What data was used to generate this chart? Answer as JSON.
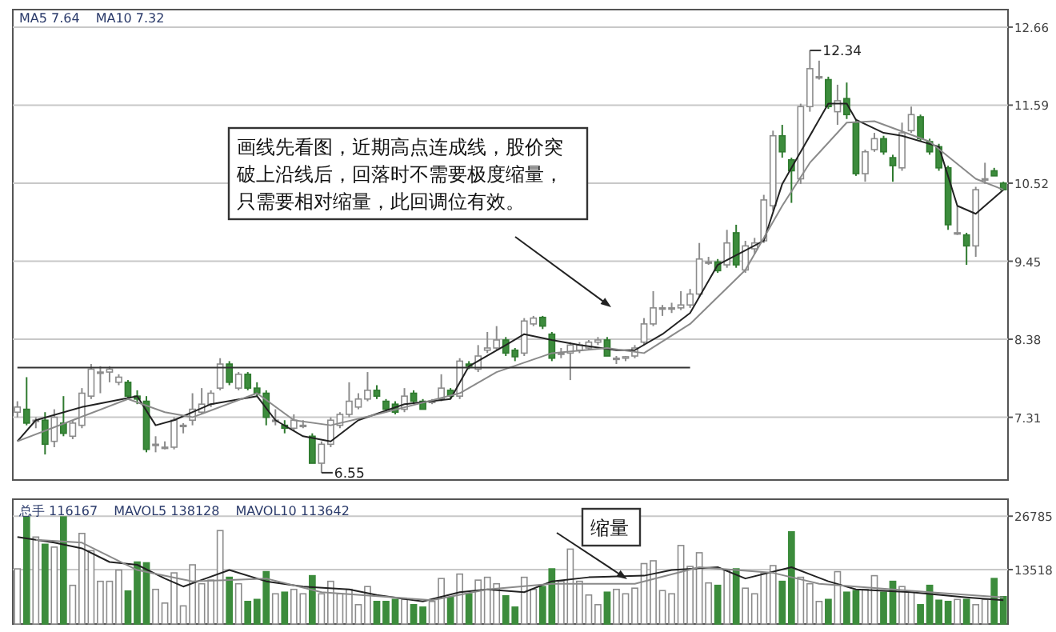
{
  "chart_data": [
    {
      "type": "candlestick",
      "tick_labels": "y",
      "grid": "y",
      "ylim": [
        6.45,
        12.9
      ],
      "yticks": [
        7.31,
        8.38,
        9.45,
        10.52,
        11.59,
        12.66
      ],
      "categories": [
        null,
        null,
        null,
        null,
        null,
        null,
        null,
        null,
        null,
        null,
        null,
        null,
        null,
        null,
        null,
        null,
        null,
        null,
        null,
        null,
        null,
        null,
        null,
        null,
        null,
        null,
        null,
        null,
        null,
        null,
        null,
        null,
        null,
        null,
        null,
        null,
        null,
        null,
        null,
        null,
        null,
        null,
        null,
        null,
        null,
        null,
        null,
        null,
        null,
        null,
        null,
        null,
        null,
        null,
        null,
        null,
        null,
        null,
        null,
        null,
        null,
        null,
        null,
        null,
        null,
        null,
        null,
        null,
        null,
        null,
        null,
        null,
        null,
        null,
        null,
        null,
        null,
        null,
        null,
        null,
        null,
        null,
        null,
        null,
        null,
        null,
        null,
        null,
        null,
        null,
        null,
        null,
        null,
        null,
        null,
        null,
        null,
        null,
        null,
        null,
        null,
        null,
        null,
        null,
        null,
        null,
        null,
        null
      ],
      "ohlc": [
        [
          7.38,
          7.53,
          7.31,
          7.45
        ],
        [
          7.42,
          7.86,
          7.2,
          7.23
        ],
        [
          7.27,
          7.31,
          7.16,
          7.27
        ],
        [
          7.27,
          7.38,
          6.8,
          6.94
        ],
        [
          6.98,
          7.42,
          6.9,
          7.31
        ],
        [
          7.23,
          7.6,
          7.05,
          7.09
        ],
        [
          7.05,
          7.27,
          7.01,
          7.23
        ],
        [
          7.2,
          7.71,
          7.16,
          7.64
        ],
        [
          7.6,
          8.04,
          7.56,
          7.97
        ],
        [
          7.93,
          8.01,
          7.64,
          7.93
        ],
        [
          7.93,
          8.01,
          7.79,
          7.97
        ],
        [
          7.79,
          7.9,
          7.75,
          7.86
        ],
        [
          7.79,
          7.82,
          7.56,
          7.6
        ],
        [
          7.6,
          7.68,
          7.49,
          7.56
        ],
        [
          7.53,
          7.6,
          6.83,
          6.87
        ],
        [
          6.94,
          7.05,
          6.83,
          6.94
        ],
        [
          6.9,
          6.98,
          6.87,
          6.9
        ],
        [
          6.9,
          7.31,
          6.87,
          7.27
        ],
        [
          7.2,
          7.23,
          7.09,
          7.2
        ],
        [
          7.27,
          7.64,
          7.2,
          7.42
        ],
        [
          7.38,
          7.71,
          7.35,
          7.49
        ],
        [
          7.49,
          7.68,
          7.45,
          7.64
        ],
        [
          7.71,
          8.12,
          7.68,
          8.04
        ],
        [
          8.04,
          8.08,
          7.75,
          7.79
        ],
        [
          7.71,
          7.93,
          7.68,
          7.9
        ],
        [
          7.9,
          7.93,
          7.68,
          7.71
        ],
        [
          7.71,
          7.79,
          7.6,
          7.64
        ],
        [
          7.64,
          7.68,
          7.2,
          7.31
        ],
        [
          7.27,
          7.42,
          7.2,
          7.27
        ],
        [
          7.2,
          7.27,
          7.09,
          7.16
        ],
        [
          7.16,
          7.35,
          7.12,
          7.27
        ],
        [
          7.2,
          7.27,
          7.16,
          7.2
        ],
        [
          7.05,
          7.09,
          6.68,
          6.68
        ],
        [
          6.68,
          6.98,
          6.55,
          6.94
        ],
        [
          6.94,
          7.31,
          6.9,
          7.27
        ],
        [
          7.2,
          7.38,
          7.16,
          7.35
        ],
        [
          7.35,
          7.79,
          7.31,
          7.53
        ],
        [
          7.45,
          7.64,
          7.42,
          7.56
        ],
        [
          7.56,
          7.93,
          7.53,
          7.68
        ],
        [
          7.68,
          7.75,
          7.56,
          7.6
        ],
        [
          7.53,
          7.56,
          7.38,
          7.42
        ],
        [
          7.49,
          7.53,
          7.35,
          7.38
        ],
        [
          7.42,
          7.71,
          7.38,
          7.6
        ],
        [
          7.64,
          7.68,
          7.49,
          7.53
        ],
        [
          7.53,
          7.56,
          7.42,
          7.42
        ],
        [
          7.53,
          7.56,
          7.49,
          7.53
        ],
        [
          7.56,
          7.9,
          7.53,
          7.71
        ],
        [
          7.68,
          7.71,
          7.56,
          7.6
        ],
        [
          7.6,
          8.12,
          7.56,
          8.08
        ],
        [
          8.04,
          8.08,
          7.97,
          8.01
        ],
        [
          7.97,
          8.3,
          7.93,
          8.15
        ],
        [
          8.23,
          8.48,
          8.19,
          8.26
        ],
        [
          8.26,
          8.56,
          8.23,
          8.37
        ],
        [
          8.37,
          8.41,
          8.15,
          8.19
        ],
        [
          8.23,
          8.26,
          8.08,
          8.14
        ],
        [
          8.19,
          8.67,
          8.15,
          8.63
        ],
        [
          8.59,
          8.7,
          8.56,
          8.67
        ],
        [
          8.68,
          8.7,
          8.52,
          8.56
        ],
        [
          8.45,
          8.48,
          8.08,
          8.12
        ],
        [
          8.19,
          8.26,
          8.12,
          8.19
        ],
        [
          8.19,
          8.34,
          7.82,
          8.3
        ],
        [
          8.23,
          8.34,
          8.19,
          8.3
        ],
        [
          8.26,
          8.37,
          8.23,
          8.34
        ],
        [
          8.34,
          8.41,
          8.3,
          8.37
        ],
        [
          8.37,
          8.41,
          8.15,
          8.15
        ],
        [
          8.12,
          8.15,
          8.04,
          8.12
        ],
        [
          8.12,
          8.15,
          8.08,
          8.14
        ],
        [
          8.15,
          8.3,
          8.12,
          8.26
        ],
        [
          8.34,
          8.67,
          8.3,
          8.59
        ],
        [
          8.59,
          9.04,
          8.56,
          8.81
        ],
        [
          8.81,
          8.85,
          8.7,
          8.81
        ],
        [
          8.81,
          8.88,
          8.74,
          8.81
        ],
        [
          8.81,
          9.04,
          8.78,
          8.85
        ],
        [
          8.85,
          9.07,
          8.81,
          9.0
        ],
        [
          9.0,
          9.7,
          8.96,
          9.48
        ],
        [
          9.44,
          9.51,
          9.4,
          9.44
        ],
        [
          9.44,
          9.48,
          9.29,
          9.32
        ],
        [
          9.4,
          9.88,
          9.36,
          9.7
        ],
        [
          9.84,
          9.95,
          9.36,
          9.4
        ],
        [
          9.33,
          9.73,
          9.29,
          9.66
        ],
        [
          9.62,
          9.77,
          9.55,
          9.7
        ],
        [
          9.73,
          10.36,
          9.7,
          10.29
        ],
        [
          10.21,
          11.24,
          10.14,
          11.17
        ],
        [
          11.17,
          11.32,
          10.87,
          10.95
        ],
        [
          10.84,
          10.87,
          10.25,
          10.69
        ],
        [
          10.58,
          11.61,
          10.51,
          11.57
        ],
        [
          11.57,
          12.34,
          11.5,
          12.09
        ],
        [
          11.98,
          12.2,
          11.94,
          11.98
        ],
        [
          11.94,
          11.98,
          11.54,
          11.57
        ],
        [
          11.5,
          11.87,
          11.32,
          11.65
        ],
        [
          11.68,
          11.9,
          11.4,
          11.46
        ],
        [
          11.35,
          11.4,
          10.62,
          10.65
        ],
        [
          10.65,
          10.98,
          10.54,
          10.95
        ],
        [
          10.98,
          11.21,
          10.95,
          11.13
        ],
        [
          11.13,
          11.17,
          10.91,
          10.95
        ],
        [
          10.87,
          10.91,
          10.54,
          10.76
        ],
        [
          10.73,
          11.35,
          10.69,
          11.21
        ],
        [
          11.24,
          11.57,
          11.21,
          11.46
        ],
        [
          11.43,
          11.46,
          11.09,
          11.13
        ],
        [
          11.09,
          11.13,
          10.91,
          10.95
        ],
        [
          11.02,
          11.06,
          10.69,
          10.73
        ],
        [
          10.73,
          10.76,
          9.88,
          9.95
        ],
        [
          9.84,
          10.21,
          9.81,
          9.84
        ],
        [
          9.81,
          9.84,
          9.4,
          9.66
        ],
        [
          9.66,
          10.47,
          9.51,
          10.43
        ],
        [
          10.58,
          10.8,
          10.51,
          10.58
        ],
        [
          10.69,
          10.73,
          10.62,
          10.62
        ],
        [
          10.52,
          10.54,
          10.43,
          10.43
        ]
      ],
      "series": [
        {
          "type": "line",
          "color": "#222222",
          "values": [
            6.98,
            null,
            7.27,
            null,
            null,
            null,
            null,
            7.45,
            null,
            null,
            null,
            null,
            null,
            7.6,
            null,
            7.2,
            null,
            7.27,
            null,
            null,
            null,
            7.49,
            null,
            null,
            null,
            null,
            7.6,
            null,
            7.27,
            null,
            null,
            7.05,
            null,
            null,
            6.98,
            null,
            null,
            7.27,
            null,
            null,
            null,
            null,
            7.49,
            null,
            null,
            null,
            null,
            7.56,
            null,
            8.01,
            null,
            null,
            null,
            8.3,
            null,
            8.45,
            null,
            null,
            8.37,
            null,
            null,
            8.3,
            null,
            null,
            null,
            8.23,
            null,
            8.23,
            null,
            null,
            8.45,
            null,
            null,
            8.74,
            null,
            null,
            9.4,
            null,
            null,
            null,
            null,
            9.73,
            null,
            10.51,
            null,
            10.95,
            null,
            null,
            11.61,
            null,
            11.61,
            11.39,
            null,
            null,
            11.21,
            null,
            11.17,
            null,
            null,
            null,
            11.02,
            null,
            10.21,
            null,
            10.1,
            null,
            null,
            10.43
          ]
        },
        {
          "type": "line",
          "color": "#8a8a8a",
          "values": [
            6.98,
            null,
            null,
            null,
            null,
            null,
            7.27,
            null,
            null,
            null,
            null,
            null,
            7.56,
            null,
            null,
            null,
            7.38,
            null,
            null,
            7.31,
            null,
            null,
            null,
            null,
            null,
            null,
            7.64,
            null,
            null,
            null,
            7.27,
            null,
            null,
            null,
            7.2,
            null,
            null,
            null,
            null,
            7.35,
            null,
            null,
            null,
            null,
            null,
            null,
            null,
            null,
            7.64,
            null,
            null,
            null,
            7.93,
            null,
            null,
            null,
            null,
            null,
            8.19,
            null,
            null,
            null,
            null,
            null,
            8.26,
            null,
            null,
            null,
            8.19,
            null,
            null,
            null,
            null,
            8.59,
            null,
            null,
            null,
            null,
            null,
            9.33,
            null,
            null,
            null,
            10.21,
            null,
            null,
            10.8,
            null,
            null,
            null,
            11.35,
            null,
            null,
            11.37,
            null,
            null,
            null,
            null,
            null,
            11.09,
            null,
            null,
            null,
            null,
            10.58,
            null,
            null,
            10.43
          ]
        },
        {
          "type": "line",
          "color": "#333333",
          "values": [
            7.99,
            null,
            null,
            null,
            null,
            null,
            null,
            null,
            null,
            null,
            null,
            null,
            null,
            null,
            null,
            null,
            null,
            null,
            null,
            null,
            null,
            null,
            null,
            null,
            null,
            null,
            null,
            null,
            null,
            null,
            null,
            null,
            null,
            null,
            null,
            null,
            null,
            null,
            null,
            null,
            null,
            null,
            null,
            null,
            null,
            null,
            null,
            null,
            null,
            null,
            null,
            null,
            null,
            null,
            null,
            null,
            null,
            null,
            null,
            null,
            null,
            null,
            null,
            null,
            null,
            null,
            null,
            null,
            null,
            null,
            null,
            null,
            null,
            7.99,
            null,
            null,
            null,
            null,
            null,
            null,
            null,
            null,
            null,
            null,
            null,
            null,
            null,
            null,
            null,
            null,
            null,
            null,
            null,
            null,
            null,
            null,
            null,
            null,
            null,
            null,
            null,
            null,
            null,
            null,
            null,
            null,
            null,
            null
          ]
        }
      ],
      "annotations": [
        "MA5 7.64",
        "MA10 7.32",
        "画线先看图，近期高点连成线，股价突破上沿线后，回落时不需要极度缩量，只需要相对缩量，此回调位有效。",
        "12.34",
        "6.55"
      ]
    },
    {
      "type": "bar",
      "tick_labels": "y",
      "colors": [
        "#ffffff",
        "#3c8c3c",
        "#ffffff",
        "#3c8c3c",
        "#ffffff",
        "#3c8c3c",
        "#ffffff",
        "#ffffff",
        "#ffffff",
        "#ffffff",
        "#ffffff",
        "#ffffff",
        "#3c8c3c",
        "#3c8c3c",
        "#3c8c3c",
        "#ffffff",
        "#ffffff",
        "#ffffff",
        "#ffffff",
        "#ffffff",
        "#ffffff",
        "#ffffff",
        "#ffffff",
        "#3c8c3c",
        "#ffffff",
        "#3c8c3c",
        "#3c8c3c",
        "#3c8c3c",
        "#ffffff",
        "#3c8c3c",
        "#ffffff",
        "#ffffff",
        "#3c8c3c",
        "#ffffff",
        "#ffffff",
        "#ffffff",
        "#ffffff",
        "#ffffff",
        "#ffffff",
        "#3c8c3c",
        "#3c8c3c",
        "#3c8c3c",
        "#ffffff",
        "#3c8c3c",
        "#3c8c3c",
        "#ffffff",
        "#ffffff",
        "#3c8c3c",
        "#ffffff",
        "#3c8c3c",
        "#ffffff",
        "#ffffff",
        "#ffffff",
        "#3c8c3c",
        "#3c8c3c",
        "#ffffff",
        "#ffffff",
        "#3c8c3c",
        "#3c8c3c",
        "#ffffff",
        "#ffffff",
        "#ffffff",
        "#ffffff",
        "#ffffff",
        "#3c8c3c",
        "#ffffff",
        "#ffffff",
        "#ffffff",
        "#ffffff",
        "#ffffff",
        "#ffffff",
        "#ffffff",
        "#ffffff",
        "#ffffff",
        "#ffffff",
        "#ffffff",
        "#3c8c3c",
        "#ffffff",
        "#3c8c3c",
        "#ffffff",
        "#ffffff",
        "#ffffff",
        "#ffffff",
        "#3c8c3c",
        "#3c8c3c",
        "#ffffff",
        "#ffffff",
        "#ffffff",
        "#3c8c3c",
        "#ffffff",
        "#3c8c3c",
        "#3c8c3c",
        "#ffffff",
        "#ffffff",
        "#3c8c3c",
        "#3c8c3c",
        "#ffffff",
        "#ffffff",
        "#3c8c3c",
        "#3c8c3c",
        "#3c8c3c",
        "#3c8c3c",
        "#ffffff",
        "#3c8c3c",
        "#ffffff",
        "#ffffff",
        "#3c8c3c",
        "#3c8c3c"
      ],
      "grid": "y",
      "ylim": [
        0,
        31000
      ],
      "yticks": [
        13518,
        26785
      ],
      "categories": [
        null,
        null,
        null,
        null,
        null,
        null,
        null,
        null,
        null,
        null,
        null,
        null,
        null,
        null,
        null,
        null,
        null,
        null,
        null,
        null,
        null,
        null,
        null,
        null,
        null,
        null,
        null,
        null,
        null,
        null,
        null,
        null,
        null,
        null,
        null,
        null,
        null,
        null,
        null,
        null,
        null,
        null,
        null,
        null,
        null,
        null,
        null,
        null,
        null,
        null,
        null,
        null,
        null,
        null,
        null,
        null,
        null,
        null,
        null,
        null,
        null,
        null,
        null,
        null,
        null,
        null,
        null,
        null,
        null,
        null,
        null,
        null,
        null,
        null,
        null,
        null,
        null,
        null,
        null,
        null,
        null,
        null,
        null,
        null,
        null,
        null,
        null,
        null,
        null,
        null,
        null,
        null,
        null,
        null,
        null,
        null,
        null,
        null,
        null,
        null,
        null,
        null,
        null,
        null,
        null,
        null,
        null,
        null
      ],
      "values": [
        13700,
        26600,
        21600,
        19800,
        19100,
        26600,
        9600,
        22500,
        18200,
        10600,
        10600,
        13400,
        8200,
        15400,
        15200,
        8600,
        5200,
        12700,
        4500,
        14700,
        10000,
        10900,
        23200,
        11600,
        10000,
        5600,
        6100,
        13000,
        7500,
        7900,
        8600,
        7500,
        12000,
        7500,
        10600,
        7500,
        8600,
        4800,
        9300,
        5600,
        5600,
        6100,
        6100,
        4800,
        4200,
        5600,
        11300,
        6600,
        12400,
        7500,
        10900,
        11600,
        10000,
        7000,
        4200,
        11600,
        8600,
        9300,
        13700,
        10600,
        18600,
        10600,
        7200,
        4800,
        7900,
        8600,
        7500,
        8900,
        15000,
        15700,
        8300,
        7500,
        19500,
        14300,
        17700,
        10200,
        9600,
        13400,
        13700,
        8900,
        7500,
        12700,
        14500,
        10600,
        22900,
        11600,
        10000,
        5600,
        6100,
        13000,
        7900,
        8300,
        8600,
        12000,
        7900,
        10600,
        9300,
        7900,
        4800,
        9600,
        5900,
        5600,
        6100,
        6100,
        4800,
        6100,
        11300,
        6800
      ],
      "series": [
        {
          "type": "line",
          "color": "#222222",
          "values": [
            21600,
            null,
            null,
            null,
            20200,
            null,
            null,
            18800,
            null,
            null,
            15400,
            null,
            null,
            14700,
            null,
            null,
            11300,
            null,
            9300,
            null,
            null,
            null,
            null,
            13400,
            null,
            null,
            null,
            10600,
            null,
            null,
            null,
            9300,
            null,
            null,
            null,
            null,
            8600,
            null,
            null,
            7200,
            null,
            null,
            null,
            null,
            5600,
            null,
            null,
            null,
            7900,
            null,
            null,
            8600,
            null,
            null,
            null,
            7900,
            null,
            null,
            10600,
            null,
            null,
            null,
            11600,
            null,
            null,
            null,
            null,
            null,
            12000,
            null,
            null,
            13400,
            null,
            null,
            null,
            null,
            14100,
            null,
            null,
            11300,
            null,
            null,
            null,
            null,
            14100,
            null,
            null,
            null,
            10600,
            null,
            null,
            8600,
            null,
            null,
            null,
            null,
            null,
            7900,
            null,
            null,
            null,
            null,
            null,
            6600,
            null,
            null,
            null,
            5900
          ]
        },
        {
          "type": "line",
          "color": "#8a8a8a",
          "values": [
            null,
            null,
            20900,
            null,
            null,
            null,
            null,
            20200,
            null,
            null,
            null,
            null,
            null,
            13400,
            null,
            null,
            null,
            null,
            null,
            10600,
            null,
            null,
            null,
            null,
            null,
            null,
            null,
            11300,
            null,
            null,
            null,
            null,
            null,
            7900,
            null,
            null,
            null,
            null,
            null,
            null,
            null,
            null,
            null,
            null,
            null,
            5900,
            null,
            null,
            null,
            null,
            null,
            8600,
            null,
            null,
            null,
            null,
            null,
            null,
            10000,
            null,
            null,
            null,
            null,
            null,
            null,
            null,
            null,
            10000,
            null,
            null,
            null,
            null,
            null,
            null,
            14100,
            null,
            null,
            null,
            null,
            null,
            null,
            null,
            12700,
            null,
            null,
            null,
            null,
            10000,
            null,
            null,
            null,
            null,
            null,
            null,
            null,
            null,
            null,
            null,
            null,
            7900,
            null,
            null,
            null,
            null,
            null,
            null,
            null,
            6600
          ]
        }
      ],
      "annotations": [
        "总手 116167",
        "MAVOL5 138128",
        "MAVOL10 113642",
        "缩量"
      ]
    }
  ]
}
